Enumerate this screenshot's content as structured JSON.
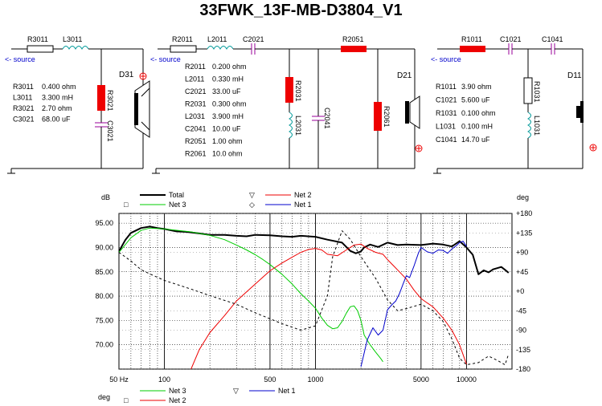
{
  "title": "33FWK_13F-MB-D3804_V1",
  "colors": {
    "total": "#000000",
    "net1": "#0000cc",
    "net2": "#ee0000",
    "net3": "#00cc00",
    "resistor": "#ee0000",
    "capacitor": "#990099",
    "inductor": "#009999",
    "source": "#0000cc"
  },
  "circuits": {
    "c1": {
      "source_label": "<- source",
      "driver": "D31",
      "part_labels": {
        "r_series": "R3011",
        "l_series": "L3011",
        "r_shunt": "R3021",
        "c_shunt": "C3021"
      },
      "values": [
        {
          "name": "R3011",
          "value": "0.400 ohm"
        },
        {
          "name": "L3011",
          "value": "3.300 mH"
        },
        {
          "name": "R3021",
          "value": "2.70 ohm"
        },
        {
          "name": "C3021",
          "value": "68.00 uF"
        }
      ]
    },
    "c2": {
      "source_label": "<- source",
      "driver": "D21",
      "part_labels": {
        "r_series": "R2011",
        "l_series": "L2011",
        "c_series": "C2021",
        "r_top": "R2051",
        "r_shunt": "R2031",
        "l_shunt": "L2031",
        "c_shunt": "C2041",
        "r_par": "R2061"
      },
      "values": [
        {
          "name": "R2011",
          "value": "0.200 ohm"
        },
        {
          "name": "L2011",
          "value": "0.330 mH"
        },
        {
          "name": "C2021",
          "value": "33.00 uF"
        },
        {
          "name": "R2031",
          "value": "0.300 ohm"
        },
        {
          "name": "L2031",
          "value": "3.900 mH"
        },
        {
          "name": "C2041",
          "value": "10.00 uF"
        },
        {
          "name": "R2051",
          "value": "1.00 ohm"
        },
        {
          "name": "R2061",
          "value": "10.0 ohm"
        }
      ]
    },
    "c3": {
      "source_label": "<- source",
      "driver": "D11",
      "part_labels": {
        "r_series": "R1011",
        "c_series1": "C1021",
        "c_series2": "C1041",
        "r_shunt": "R1031",
        "l_shunt": "L1031"
      },
      "values": [
        {
          "name": "R1011",
          "value": "3.90 ohm"
        },
        {
          "name": "C1021",
          "value": "5.600 uF"
        },
        {
          "name": "R1031",
          "value": "0.100 ohm"
        },
        {
          "name": "L1031",
          "value": "0.100 mH"
        },
        {
          "name": "C1041",
          "value": "14.70 uF"
        }
      ]
    }
  },
  "chart_data": {
    "type": "line",
    "x_scale": "log",
    "xlim": [
      50,
      20000
    ],
    "x_tick_labels": [
      "50 Hz",
      "100",
      "500",
      "1000",
      "5000",
      "10000"
    ],
    "x_ticks": [
      50,
      100,
      500,
      1000,
      5000,
      10000
    ],
    "ylabel_left": "dB",
    "ylabel_right": "deg",
    "ylim": [
      65,
      97
    ],
    "y_ticks_left": [
      70,
      75,
      80,
      85,
      90,
      95
    ],
    "y_tick_labels_left": [
      "70.00",
      "75.00",
      "80.00",
      "85.00",
      "90.00",
      "95.00"
    ],
    "y2lim": [
      -180,
      180
    ],
    "y_ticks_right": [
      180,
      135,
      90,
      45,
      0,
      -45,
      -90,
      -135,
      -180
    ],
    "y_tick_labels_right": [
      "+180",
      "+135",
      "+90",
      "+45",
      "+0",
      "-45",
      "-90",
      "-135",
      "-180"
    ],
    "grid": true,
    "legend_top": [
      {
        "name": "Total",
        "marker": "",
        "color": "#000000"
      },
      {
        "name": "Net 3",
        "marker": "□",
        "color": "#00cc00"
      },
      {
        "name": "Net 2",
        "marker": "▽",
        "color": "#ee0000"
      },
      {
        "name": "Net 1",
        "marker": "◇",
        "color": "#0000cc"
      }
    ],
    "legend_bottom_label": "deg",
    "legend_bottom": [
      {
        "name": "Net 3",
        "marker": "",
        "color": "#00cc00"
      },
      {
        "name": "Net 2",
        "marker": "□",
        "color": "#ee0000"
      },
      {
        "name": "Net 1",
        "marker": "▽",
        "color": "#0000cc"
      }
    ],
    "series": [
      {
        "name": "Total",
        "axis": "left",
        "color": "#000000",
        "width": 2,
        "dash": "",
        "points": [
          [
            50,
            89.2
          ],
          [
            55,
            91.5
          ],
          [
            60,
            93
          ],
          [
            70,
            94
          ],
          [
            80,
            94.3
          ],
          [
            90,
            94
          ],
          [
            100,
            93.8
          ],
          [
            120,
            93.3
          ],
          [
            140,
            93.2
          ],
          [
            170,
            92.9
          ],
          [
            200,
            92.6
          ],
          [
            250,
            92.6
          ],
          [
            300,
            92.4
          ],
          [
            350,
            92.3
          ],
          [
            400,
            92.6
          ],
          [
            500,
            92.5
          ],
          [
            600,
            92.3
          ],
          [
            700,
            92.2
          ],
          [
            800,
            92.4
          ],
          [
            1000,
            92.2
          ],
          [
            1200,
            91.6
          ],
          [
            1500,
            91
          ],
          [
            1700,
            89.3
          ],
          [
            1850,
            88.8
          ],
          [
            2000,
            89.2
          ],
          [
            2100,
            90
          ],
          [
            2300,
            90.6
          ],
          [
            2600,
            90.1
          ],
          [
            3000,
            91
          ],
          [
            3500,
            90.5
          ],
          [
            4000,
            90.6
          ],
          [
            5000,
            90.5
          ],
          [
            6000,
            90.8
          ],
          [
            7000,
            90.6
          ],
          [
            8000,
            90.2
          ],
          [
            9000,
            91.3
          ],
          [
            10000,
            90
          ],
          [
            11000,
            88.5
          ],
          [
            12000,
            84.5
          ],
          [
            13000,
            85.3
          ],
          [
            14000,
            84.9
          ],
          [
            15000,
            85.5
          ],
          [
            17000,
            86
          ],
          [
            18000,
            85.4
          ],
          [
            19000,
            84.8
          ]
        ]
      },
      {
        "name": "Net 3",
        "axis": "left",
        "color": "#00cc00",
        "width": 1,
        "dash": "",
        "points": [
          [
            50,
            89
          ],
          [
            60,
            92
          ],
          [
            70,
            93.5
          ],
          [
            80,
            94
          ],
          [
            100,
            93.8
          ],
          [
            150,
            93.2
          ],
          [
            200,
            92.5
          ],
          [
            250,
            91.6
          ],
          [
            300,
            90.5
          ],
          [
            350,
            89.5
          ],
          [
            400,
            88.5
          ],
          [
            450,
            87.5
          ],
          [
            500,
            86.5
          ],
          [
            600,
            84.5
          ],
          [
            700,
            82.5
          ],
          [
            800,
            80.5
          ],
          [
            900,
            79
          ],
          [
            1000,
            77.5
          ],
          [
            1100,
            75.5
          ],
          [
            1200,
            74
          ],
          [
            1300,
            73.3
          ],
          [
            1400,
            73.5
          ],
          [
            1500,
            74.8
          ],
          [
            1600,
            76.5
          ],
          [
            1700,
            77.8
          ],
          [
            1800,
            78
          ],
          [
            1900,
            77
          ],
          [
            2000,
            75
          ],
          [
            2100,
            72
          ],
          [
            2300,
            70
          ],
          [
            2500,
            68.5
          ],
          [
            2700,
            67.2
          ],
          [
            2800,
            66.5
          ]
        ]
      },
      {
        "name": "Net 2",
        "axis": "left",
        "color": "#ee0000",
        "width": 1,
        "dash": "",
        "points": [
          [
            150,
            65
          ],
          [
            170,
            69
          ],
          [
            200,
            72.5
          ],
          [
            250,
            76
          ],
          [
            300,
            79
          ],
          [
            400,
            82.5
          ],
          [
            500,
            85.2
          ],
          [
            600,
            86.8
          ],
          [
            700,
            88
          ],
          [
            800,
            89
          ],
          [
            900,
            89.6
          ],
          [
            1000,
            89.8
          ],
          [
            1100,
            89.5
          ],
          [
            1200,
            88.6
          ],
          [
            1400,
            88.3
          ],
          [
            1600,
            89.5
          ],
          [
            1800,
            90.5
          ],
          [
            2000,
            90.7
          ],
          [
            2200,
            89.8
          ],
          [
            2500,
            89
          ],
          [
            2800,
            88.6
          ],
          [
            3000,
            87.5
          ],
          [
            3300,
            86.2
          ],
          [
            3600,
            85
          ],
          [
            4000,
            83.5
          ],
          [
            4500,
            81.2
          ],
          [
            5000,
            79.5
          ],
          [
            5500,
            78.6
          ],
          [
            6000,
            77.8
          ],
          [
            7000,
            75.5
          ],
          [
            8000,
            73
          ],
          [
            9000,
            70
          ],
          [
            10000,
            66
          ]
        ]
      },
      {
        "name": "Net 1",
        "axis": "left",
        "color": "#0000cc",
        "width": 1,
        "dash": "",
        "points": [
          [
            2000,
            65.5
          ],
          [
            2200,
            71
          ],
          [
            2400,
            73.5
          ],
          [
            2600,
            72
          ],
          [
            2800,
            73
          ],
          [
            3000,
            77.2
          ],
          [
            3200,
            78.2
          ],
          [
            3400,
            79
          ],
          [
            3600,
            80.5
          ],
          [
            3800,
            82.5
          ],
          [
            4000,
            84.2
          ],
          [
            4200,
            83.8
          ],
          [
            4500,
            86.3
          ],
          [
            4800,
            88.8
          ],
          [
            5000,
            90
          ],
          [
            5500,
            89.1
          ],
          [
            6000,
            88.8
          ],
          [
            6500,
            89.5
          ],
          [
            7000,
            89.4
          ],
          [
            7500,
            88.8
          ],
          [
            8000,
            89.7
          ],
          [
            8500,
            90.3
          ],
          [
            9000,
            91
          ],
          [
            9500,
            91.3
          ],
          [
            10000,
            90.2
          ]
        ]
      },
      {
        "name": "Total phase",
        "axis": "right",
        "color": "#000000",
        "width": 1,
        "dash": "3,3",
        "points": [
          [
            50,
            90
          ],
          [
            60,
            70
          ],
          [
            70,
            50
          ],
          [
            80,
            40
          ],
          [
            100,
            25
          ],
          [
            150,
            5
          ],
          [
            200,
            -10
          ],
          [
            300,
            -30
          ],
          [
            400,
            -50
          ],
          [
            600,
            -75
          ],
          [
            800,
            -90
          ],
          [
            1000,
            -80
          ],
          [
            1200,
            -10
          ],
          [
            1300,
            80
          ],
          [
            1500,
            140
          ],
          [
            1700,
            120
          ],
          [
            2000,
            80
          ],
          [
            2500,
            30
          ],
          [
            3000,
            -20
          ],
          [
            3500,
            -45
          ],
          [
            4000,
            -40
          ],
          [
            5000,
            -30
          ],
          [
            6000,
            -45
          ],
          [
            7000,
            -70
          ],
          [
            8000,
            -110
          ],
          [
            9000,
            -155
          ],
          [
            10000,
            -170
          ],
          [
            12000,
            -165
          ],
          [
            14000,
            -150
          ],
          [
            16000,
            -160
          ],
          [
            18000,
            -170
          ],
          [
            19000,
            -145
          ]
        ]
      }
    ]
  }
}
